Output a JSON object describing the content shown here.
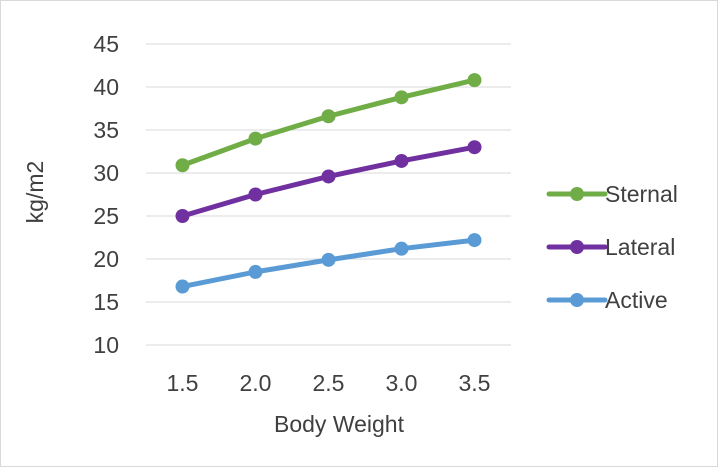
{
  "chart_data": {
    "type": "line",
    "title": "",
    "xlabel": "Body Weight",
    "ylabel": "kg/m2",
    "x": [
      1.5,
      2.0,
      2.5,
      3.0,
      3.5
    ],
    "x_tick_labels": [
      "1.5",
      "2.0",
      "2.5",
      "3.0",
      "3.5"
    ],
    "ylim": [
      10,
      45
    ],
    "y_ticks": [
      10,
      15,
      20,
      25,
      30,
      35,
      40,
      45
    ],
    "grid": true,
    "legend_position": "right",
    "series": [
      {
        "name": "Sternal",
        "color": "#70ad47",
        "values": [
          30.9,
          34.0,
          36.6,
          38.8,
          40.8
        ]
      },
      {
        "name": "Lateral",
        "color": "#7030a0",
        "values": [
          25.0,
          27.5,
          29.6,
          31.4,
          33.0
        ]
      },
      {
        "name": "Active",
        "color": "#5b9bd5",
        "values": [
          16.8,
          18.5,
          19.9,
          21.2,
          22.2
        ]
      }
    ]
  }
}
